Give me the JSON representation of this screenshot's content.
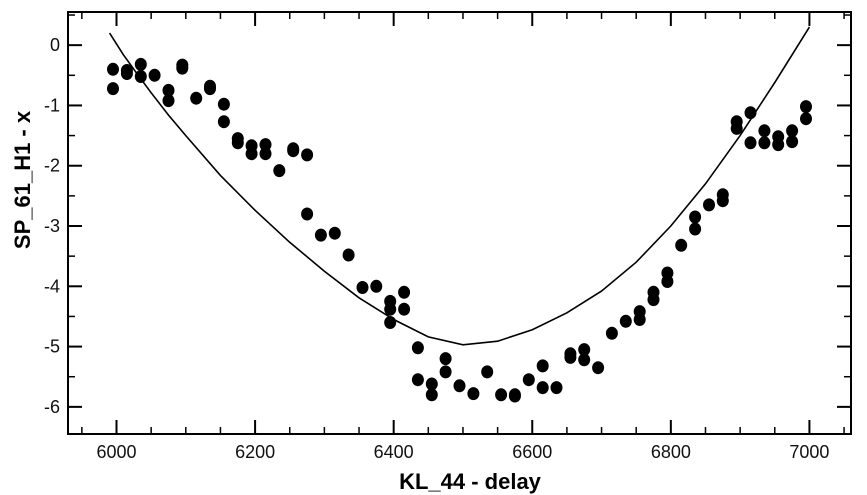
{
  "chart_data": {
    "type": "scatter",
    "title": "",
    "xlabel": "KL_44 - delay",
    "ylabel": "SP_61_H1 - x",
    "xlim": [
      5930,
      7060
    ],
    "ylim": [
      -6.45,
      0.55
    ],
    "x_ticks": [
      6000,
      6200,
      6400,
      6600,
      6800,
      7000
    ],
    "y_ticks": [
      0,
      -1,
      -2,
      -3,
      -4,
      -5,
      -6
    ],
    "x_tick_labels": [
      "6000",
      "6200",
      "6400",
      "6600",
      "6800",
      "7000"
    ],
    "y_tick_labels": [
      "0",
      "-1",
      "-2",
      "-3",
      "-4",
      "-5",
      "-6"
    ],
    "grid": false,
    "series": [
      {
        "kind": "points",
        "color": "#000000",
        "x": [
          5995,
          5995,
          6015,
          6015,
          6035,
          6035,
          6055,
          6075,
          6075,
          6095,
          6095,
          6115,
          6135,
          6135,
          6155,
          6155,
          6175,
          6175,
          6195,
          6195,
          6215,
          6215,
          6235,
          6255,
          6255,
          6275,
          6275,
          6295,
          6315,
          6335,
          6355,
          6375,
          6395,
          6395,
          6395,
          6415,
          6415,
          6435,
          6435,
          6455,
          6455,
          6475,
          6475,
          6495,
          6515,
          6535,
          6555,
          6575,
          6575,
          6595,
          6615,
          6615,
          6635,
          6655,
          6655,
          6675,
          6675,
          6695,
          6715,
          6735,
          6755,
          6755,
          6775,
          6775,
          6795,
          6795,
          6815,
          6835,
          6835,
          6855,
          6875,
          6875,
          6895,
          6895,
          6915,
          6915,
          6935,
          6935,
          6955,
          6955,
          6975,
          6975,
          6995,
          6995
        ],
        "y": [
          -0.4,
          -0.72,
          -0.42,
          -0.47,
          -0.32,
          -0.52,
          -0.5,
          -0.75,
          -0.92,
          -0.33,
          -0.38,
          -0.88,
          -0.68,
          -0.72,
          -0.98,
          -1.27,
          -1.55,
          -1.62,
          -1.67,
          -1.8,
          -1.65,
          -1.8,
          -2.08,
          -1.72,
          -1.75,
          -1.82,
          -2.8,
          -3.15,
          -3.12,
          -3.48,
          -4.02,
          -4.0,
          -4.25,
          -4.38,
          -4.6,
          -4.1,
          -4.38,
          -5.02,
          -5.55,
          -5.62,
          -5.8,
          -5.2,
          -5.42,
          -5.65,
          -5.78,
          -5.42,
          -5.8,
          -5.8,
          -5.82,
          -5.55,
          -5.32,
          -5.68,
          -5.68,
          -5.12,
          -5.18,
          -5.05,
          -5.22,
          -5.35,
          -4.78,
          -4.58,
          -4.42,
          -4.55,
          -4.1,
          -4.22,
          -3.78,
          -3.92,
          -3.32,
          -2.85,
          -3.05,
          -2.65,
          -2.48,
          -2.58,
          -1.27,
          -1.38,
          -1.12,
          -1.62,
          -1.42,
          -1.62,
          -1.52,
          -1.65,
          -1.42,
          -1.6,
          -1.02,
          -1.22
        ]
      },
      {
        "kind": "fit-curve",
        "color": "#000000",
        "x": [
          5990,
          6010,
          6030,
          6050,
          6075,
          6100,
          6150,
          6200,
          6250,
          6300,
          6350,
          6400,
          6450,
          6500,
          6550,
          6600,
          6650,
          6700,
          6750,
          6800,
          6850,
          6900,
          6950,
          7000
        ],
        "y": [
          0.2,
          -0.16,
          -0.48,
          -0.79,
          -1.16,
          -1.5,
          -2.16,
          -2.74,
          -3.27,
          -3.75,
          -4.19,
          -4.55,
          -4.84,
          -4.97,
          -4.91,
          -4.72,
          -4.44,
          -4.08,
          -3.6,
          -3.0,
          -2.3,
          -1.5,
          -0.62,
          0.3
        ]
      }
    ]
  }
}
